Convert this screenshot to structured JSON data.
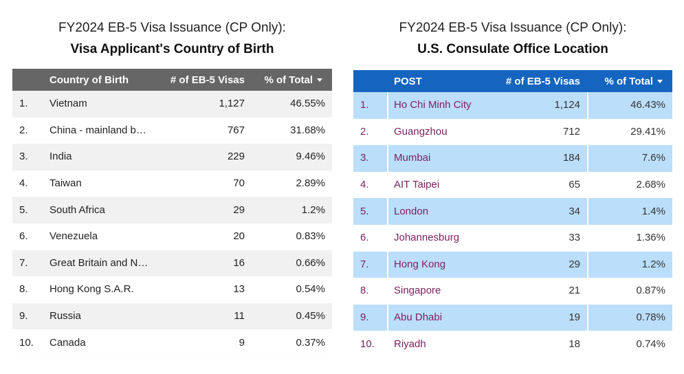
{
  "left": {
    "title": "FY2024 EB-5 Visa Issuance (CP Only):",
    "subtitle": "Visa Applicant's Country of Birth",
    "columns": [
      "Country of Birth",
      "# of EB-5 Visas",
      "% of Total"
    ],
    "rows": [
      [
        "1.",
        "Vietnam",
        "1,127",
        "46.55%"
      ],
      [
        "2.",
        "China - mainland b…",
        "767",
        "31.68%"
      ],
      [
        "3.",
        "India",
        "229",
        "9.46%"
      ],
      [
        "4.",
        "Taiwan",
        "70",
        "2.89%"
      ],
      [
        "5.",
        "South Africa",
        "29",
        "1.2%"
      ],
      [
        "6.",
        "Venezuela",
        "20",
        "0.83%"
      ],
      [
        "7.",
        "Great Britain and N…",
        "16",
        "0.66%"
      ],
      [
        "8.",
        "Hong Kong S.A.R.",
        "13",
        "0.54%"
      ],
      [
        "9.",
        "Russia",
        "11",
        "0.45%"
      ],
      [
        "10.",
        "Canada",
        "9",
        "0.37%"
      ]
    ]
  },
  "right": {
    "title": "FY2024 EB-5 Visa Issuance (CP Only):",
    "subtitle": "U.S. Consulate Office Location",
    "columns": [
      "POST",
      "# of EB-5 Visas",
      "% of Total"
    ],
    "rows": [
      [
        "1.",
        "Ho Chi Minh City",
        "1,124",
        "46.43%"
      ],
      [
        "2.",
        "Guangzhou",
        "712",
        "29.41%"
      ],
      [
        "3.",
        "Mumbai",
        "184",
        "7.6%"
      ],
      [
        "4.",
        "AIT Taipei",
        "65",
        "2.68%"
      ],
      [
        "5.",
        "London",
        "34",
        "1.4%"
      ],
      [
        "6.",
        "Johannesburg",
        "33",
        "1.36%"
      ],
      [
        "7.",
        "Hong Kong",
        "29",
        "1.2%"
      ],
      [
        "8.",
        "Singapore",
        "21",
        "0.87%"
      ],
      [
        "9.",
        "Abu Dhabi",
        "19",
        "0.78%"
      ],
      [
        "10.",
        "Riyadh",
        "18",
        "0.74%"
      ]
    ]
  }
}
